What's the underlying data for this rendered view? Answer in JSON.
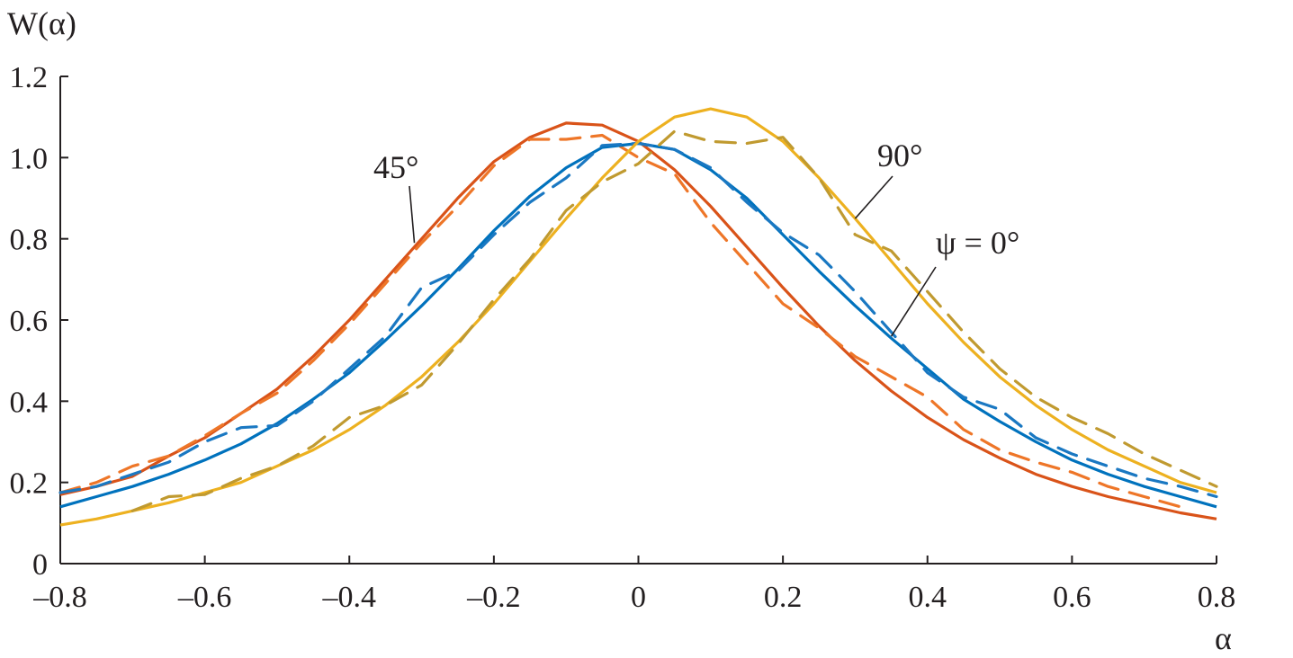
{
  "chart_data": {
    "type": "line",
    "title": "",
    "xlabel": "α",
    "ylabel": "W(α)",
    "ylabel_italic_part": "W",
    "xlim": [
      -0.8,
      0.8
    ],
    "ylim": [
      0,
      1.2
    ],
    "xticks": [
      -0.8,
      -0.6,
      -0.4,
      -0.2,
      0,
      0.2,
      0.4,
      0.6,
      0.8
    ],
    "xtick_labels": [
      "–0.8",
      "–0.6",
      "–0.4",
      "–0.2",
      "0",
      "0.2",
      "0.4",
      "0.6",
      "0.8"
    ],
    "yticks": [
      0,
      0.2,
      0.4,
      0.6,
      0.8,
      1.0,
      1.2
    ],
    "ytick_labels": [
      "0",
      "0.2",
      "0.4",
      "0.6",
      "0.8",
      "1.0",
      "1.2"
    ],
    "grid": false,
    "x": [
      -0.8,
      -0.75,
      -0.7,
      -0.65,
      -0.6,
      -0.55,
      -0.5,
      -0.45,
      -0.4,
      -0.35,
      -0.3,
      -0.25,
      -0.2,
      -0.15,
      -0.1,
      -0.05,
      0,
      0.05,
      0.1,
      0.15,
      0.2,
      0.25,
      0.3,
      0.35,
      0.4,
      0.45,
      0.5,
      0.55,
      0.6,
      0.65,
      0.7,
      0.75,
      0.8
    ],
    "series": [
      {
        "name": "45° solid",
        "color": "#D95319",
        "dashed": false,
        "values": [
          0.17,
          0.19,
          0.215,
          0.265,
          0.31,
          0.37,
          0.43,
          0.51,
          0.6,
          0.7,
          0.8,
          0.9,
          0.99,
          1.05,
          1.085,
          1.08,
          1.04,
          0.97,
          0.88,
          0.78,
          0.68,
          0.585,
          0.5,
          0.425,
          0.36,
          0.305,
          0.26,
          0.22,
          0.19,
          0.165,
          0.145,
          0.125,
          0.11
        ]
      },
      {
        "name": "45° dashed",
        "color": "#EE7628",
        "dashed": true,
        "values": [
          0.175,
          0.2,
          0.24,
          0.265,
          0.315,
          0.37,
          0.42,
          0.5,
          0.59,
          0.69,
          0.79,
          0.88,
          0.98,
          1.045,
          1.045,
          1.055,
          1.0,
          0.96,
          0.84,
          0.74,
          0.64,
          0.58,
          0.51,
          0.46,
          0.41,
          0.33,
          0.28,
          0.25,
          0.225,
          0.19,
          0.165,
          0.14,
          null
        ]
      },
      {
        "name": "ψ = 0° solid",
        "color": "#0072BD",
        "dashed": false,
        "values": [
          0.14,
          0.165,
          0.19,
          0.22,
          0.255,
          0.295,
          0.345,
          0.405,
          0.47,
          0.55,
          0.635,
          0.725,
          0.82,
          0.905,
          0.975,
          1.025,
          1.035,
          1.02,
          0.97,
          0.9,
          0.81,
          0.72,
          0.635,
          0.555,
          0.48,
          0.405,
          0.35,
          0.3,
          0.255,
          0.22,
          0.19,
          0.165,
          0.14
        ]
      },
      {
        "name": "ψ = 0° dashed",
        "color": "#1A78C2",
        "dashed": true,
        "values": [
          0.175,
          0.19,
          0.22,
          0.25,
          0.3,
          0.335,
          0.34,
          0.4,
          0.48,
          0.56,
          0.68,
          0.72,
          0.81,
          0.89,
          0.95,
          1.03,
          1.035,
          1.02,
          0.975,
          0.89,
          0.815,
          0.76,
          0.67,
          0.57,
          0.47,
          0.41,
          0.38,
          0.31,
          0.27,
          0.24,
          0.21,
          0.19,
          0.165
        ]
      },
      {
        "name": "90° solid",
        "color": "#EDB120",
        "dashed": false,
        "values": [
          0.095,
          0.11,
          0.13,
          0.15,
          0.175,
          0.2,
          0.24,
          0.28,
          0.33,
          0.39,
          0.46,
          0.545,
          0.64,
          0.745,
          0.85,
          0.95,
          1.04,
          1.1,
          1.12,
          1.1,
          1.04,
          0.95,
          0.85,
          0.745,
          0.64,
          0.545,
          0.46,
          0.39,
          0.33,
          0.28,
          0.24,
          0.2,
          0.175
        ]
      },
      {
        "name": "90° dashed",
        "color": "#C09A30",
        "dashed": true,
        "values": [
          null,
          null,
          0.13,
          0.165,
          0.17,
          0.21,
          0.24,
          0.29,
          0.36,
          0.39,
          0.44,
          0.54,
          0.65,
          0.75,
          0.87,
          0.94,
          0.985,
          1.065,
          1.04,
          1.035,
          1.05,
          0.95,
          0.81,
          0.77,
          0.67,
          0.57,
          0.48,
          0.41,
          0.36,
          0.32,
          0.27,
          0.23,
          0.19
        ]
      }
    ],
    "annotations": [
      {
        "text": "45°",
        "points_to": [
          -0.31,
          0.79
        ]
      },
      {
        "text": "90°",
        "points_to": [
          0.3,
          0.85
        ]
      },
      {
        "text": "ψ = 0°",
        "points_to": [
          0.35,
          0.56
        ]
      }
    ]
  }
}
